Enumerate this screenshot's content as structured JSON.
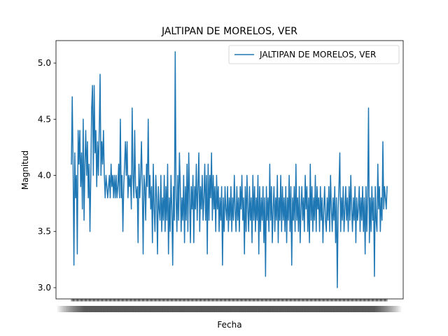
{
  "chart_data": {
    "type": "line",
    "title": "JALTIPAN DE MORELOS, VER",
    "xlabel": "Fecha",
    "ylabel": "Magnitud",
    "ylim": [
      2.9,
      5.2
    ],
    "yticks": [
      "3.0",
      "3.5",
      "4.0",
      "4.5",
      "5.0"
    ],
    "grid": false,
    "legend": {
      "position": "top-right"
    },
    "series": [
      {
        "name": "JALTIPAN DE MORELOS, VER",
        "color": "#1f77b4",
        "values": [
          4.1,
          4.7,
          4.1,
          3.2,
          4.2,
          3.8,
          4.0,
          3.3,
          4.4,
          4.1,
          4.4,
          3.9,
          4.2,
          3.7,
          4.5,
          3.6,
          4.1,
          4.4,
          4.0,
          4.3,
          3.8,
          4.1,
          3.5,
          4.0,
          4.6,
          4.8,
          4.0,
          4.8,
          4.2,
          4.4,
          3.9,
          4.3,
          4.0,
          4.4,
          4.9,
          4.0,
          4.3,
          4.1,
          4.4,
          4.0,
          3.8,
          4.0,
          3.9,
          3.8,
          3.9,
          4.0,
          3.8,
          4.1,
          3.9,
          4.0,
          3.8,
          4.0,
          3.8,
          4.0,
          3.8,
          3.9,
          4.1,
          3.8,
          4.5,
          3.8,
          4.0,
          3.5,
          3.9,
          4.1,
          4.3,
          4.0,
          4.3,
          3.8,
          4.0,
          3.9,
          4.0,
          3.7,
          4.6,
          4.0,
          3.8,
          4.4,
          3.9,
          3.8,
          3.9,
          3.4,
          4.1,
          3.8,
          4.0,
          4.3,
          3.9,
          3.3,
          4.0,
          3.9,
          3.6,
          4.1,
          3.9,
          4.5,
          3.8,
          4.0,
          3.7,
          3.9,
          3.4,
          4.1,
          3.7,
          3.5,
          4.0,
          3.8,
          3.3,
          3.9,
          3.7,
          3.6,
          4.0,
          3.5,
          3.8,
          3.6,
          4.0,
          3.5,
          3.9,
          3.6,
          4.1,
          3.3,
          3.8,
          3.5,
          4.0,
          3.7,
          3.2,
          3.9,
          3.6,
          5.1,
          3.8,
          3.5,
          4.0,
          3.6,
          4.2,
          3.9,
          3.5,
          3.8,
          3.6,
          4.0,
          3.4,
          3.9,
          3.6,
          4.1,
          3.5,
          4.2,
          3.8,
          3.4,
          3.9,
          3.7,
          4.0,
          3.4,
          3.9,
          3.7,
          4.1,
          3.6,
          3.9,
          4.2,
          3.5,
          3.9,
          3.7,
          4.0,
          3.6,
          3.8,
          4.1,
          3.6,
          4.0,
          3.3,
          4.1,
          3.6,
          4.0,
          3.8,
          4.2,
          3.6,
          4.0,
          3.7,
          3.9,
          3.5,
          4.0,
          3.7,
          3.9,
          3.5,
          3.8,
          3.6,
          3.9,
          3.2,
          3.8,
          3.5,
          3.9,
          3.7,
          3.6,
          3.9,
          3.5,
          3.8,
          3.6,
          3.9,
          3.5,
          3.8,
          3.6,
          4.0,
          3.7,
          3.5,
          3.9,
          3.6,
          3.8,
          3.5,
          3.9,
          3.7,
          4.0,
          3.6,
          3.8,
          3.3,
          3.9,
          3.5,
          4.0,
          3.7,
          3.5,
          3.9,
          3.6,
          3.8,
          3.4,
          4.0,
          3.6,
          3.9,
          3.5,
          3.8,
          3.6,
          4.0,
          3.3,
          3.9,
          3.5,
          3.8,
          3.6,
          3.9,
          3.4,
          3.8,
          3.1,
          3.9,
          3.6,
          3.8,
          3.5,
          4.1,
          3.6,
          3.9,
          3.4,
          3.7,
          3.9,
          3.5,
          3.8,
          3.6,
          4.0,
          3.4,
          3.8,
          3.6,
          4.0,
          3.5,
          3.9,
          3.6,
          3.8,
          3.5,
          3.9,
          3.4,
          3.8,
          3.6,
          4.0,
          3.5,
          3.9,
          3.2,
          3.8,
          3.6,
          3.9,
          3.5,
          4.1,
          3.6,
          3.8,
          3.5,
          3.9,
          3.4,
          3.7,
          3.9,
          3.6,
          3.8,
          3.5,
          4.0,
          3.7,
          3.9,
          3.5,
          3.8,
          3.4,
          4.1,
          3.6,
          3.9,
          3.5,
          3.8,
          3.6,
          4.0,
          3.5,
          3.9,
          3.7,
          3.8,
          3.5,
          3.9,
          3.6,
          3.8,
          3.4,
          3.7,
          3.9,
          3.6,
          3.5,
          3.8,
          3.6,
          3.9,
          3.5,
          4.0,
          3.7,
          3.5,
          3.8,
          3.6,
          3.9,
          3.4,
          3.8,
          3.0,
          3.7,
          3.9,
          4.2,
          3.5,
          3.8,
          3.6,
          3.9,
          3.5,
          3.7,
          3.9,
          3.6,
          3.8,
          3.5,
          3.9,
          3.6,
          4.0,
          3.7,
          3.5,
          3.8,
          3.6,
          3.9,
          3.4,
          3.8,
          3.6,
          3.7,
          3.9,
          3.5,
          3.8,
          3.6,
          3.9,
          3.5,
          3.8,
          3.3,
          3.9,
          3.5,
          3.8,
          4.6,
          3.4,
          3.8,
          3.5,
          3.9,
          3.6,
          3.8,
          3.1,
          3.9,
          3.6,
          3.5,
          4.1,
          3.7,
          3.9,
          3.5,
          3.8,
          3.6,
          4.3,
          3.7,
          3.9,
          3.8,
          3.7,
          3.9
        ]
      }
    ]
  }
}
